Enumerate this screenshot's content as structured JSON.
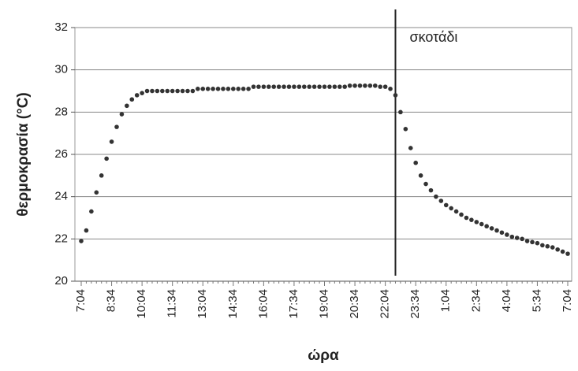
{
  "chart_data": {
    "type": "scatter",
    "x_label": "ώρα",
    "y_label": "θερμοκρασία (°C)",
    "categories": [
      "7:04",
      null,
      null,
      null,
      null,
      null,
      "8:34",
      null,
      null,
      null,
      null,
      null,
      "10:04",
      null,
      null,
      null,
      null,
      null,
      "11:34",
      null,
      null,
      null,
      null,
      null,
      "13:04",
      null,
      null,
      null,
      null,
      null,
      "14:34",
      null,
      null,
      null,
      null,
      null,
      "16:04",
      null,
      null,
      null,
      null,
      null,
      "17:34",
      null,
      null,
      null,
      null,
      null,
      "19:04",
      null,
      null,
      null,
      null,
      null,
      "20:34",
      null,
      null,
      null,
      null,
      null,
      "22:04",
      null,
      null,
      null,
      null,
      null,
      "23:34",
      null,
      null,
      null,
      null,
      null,
      "1:04",
      null,
      null,
      null,
      null,
      null,
      "2:34",
      null,
      null,
      null,
      null,
      null,
      "4:04",
      null,
      null,
      null,
      null,
      null,
      "5:34",
      null,
      null,
      null,
      null,
      null,
      "7:04"
    ],
    "values": [
      21.9,
      22.4,
      23.3,
      24.2,
      25.0,
      25.8,
      26.6,
      27.3,
      27.9,
      28.3,
      28.6,
      28.8,
      28.9,
      29.0,
      29.0,
      29.0,
      29.0,
      29.0,
      29.0,
      29.0,
      29.0,
      29.0,
      29.0,
      29.1,
      29.1,
      29.1,
      29.1,
      29.1,
      29.1,
      29.1,
      29.1,
      29.1,
      29.1,
      29.1,
      29.2,
      29.2,
      29.2,
      29.2,
      29.2,
      29.2,
      29.2,
      29.2,
      29.2,
      29.2,
      29.2,
      29.2,
      29.2,
      29.2,
      29.2,
      29.2,
      29.2,
      29.2,
      29.2,
      29.25,
      29.25,
      29.25,
      29.25,
      29.25,
      29.25,
      29.2,
      29.2,
      29.1,
      28.8,
      28.0,
      27.2,
      26.3,
      25.6,
      25.0,
      24.6,
      24.3,
      24.0,
      23.8,
      23.6,
      23.45,
      23.3,
      23.15,
      23.0,
      22.9,
      22.8,
      22.7,
      22.6,
      22.5,
      22.4,
      22.3,
      22.2,
      22.1,
      22.05,
      22.0,
      21.9,
      21.85,
      21.8,
      21.7,
      21.65,
      21.6,
      21.5,
      21.4,
      21.3
    ],
    "color": "#333333",
    "ylim": [
      20,
      32
    ],
    "yticks": [
      20,
      22,
      24,
      26,
      28,
      30,
      32
    ],
    "grid": true,
    "annotation": {
      "label": "σκοτάδι",
      "at": 62
    }
  }
}
